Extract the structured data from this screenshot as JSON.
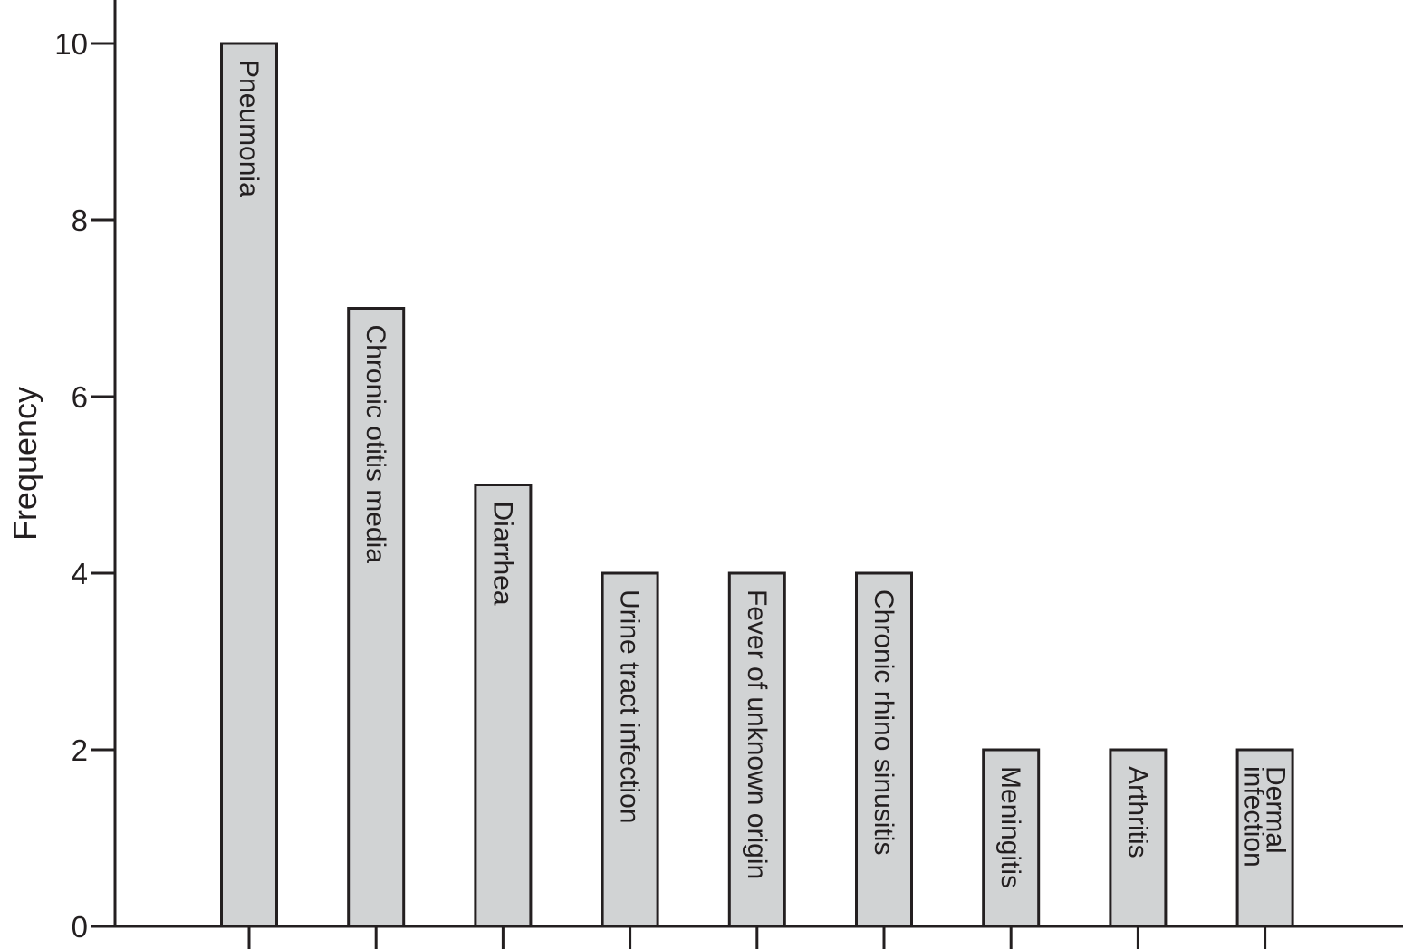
{
  "chart_data": {
    "type": "bar",
    "title": "",
    "xlabel": "",
    "ylabel": "Frequency",
    "ylim": [
      0,
      10.5
    ],
    "yticks": [
      0,
      2,
      4,
      6,
      8,
      10
    ],
    "grid": false,
    "legend": "none",
    "bar_color": "#d1d3d4",
    "edge_color": "#231f20",
    "categories": [
      "Pneumonia",
      "Chronic otitis media",
      "Diarrhea",
      "Urine tract infection",
      "Fever of unknown origin",
      "Chronic rhino sinusitis",
      "Meningitis",
      "Arthritis",
      "Dermal infection"
    ],
    "category_label_lines": [
      [
        "Pneumonia"
      ],
      [
        "Chronic otitis media"
      ],
      [
        "Diarrhea"
      ],
      [
        "Urine tract infection"
      ],
      [
        "Fever of unknown origin"
      ],
      [
        "Chronic rhino sinusitis"
      ],
      [
        "Meningitis"
      ],
      [
        "Arthritis"
      ],
      [
        "Dermal",
        "infection"
      ]
    ],
    "values": [
      10,
      7,
      5,
      4,
      4,
      4,
      2,
      2,
      2
    ]
  }
}
